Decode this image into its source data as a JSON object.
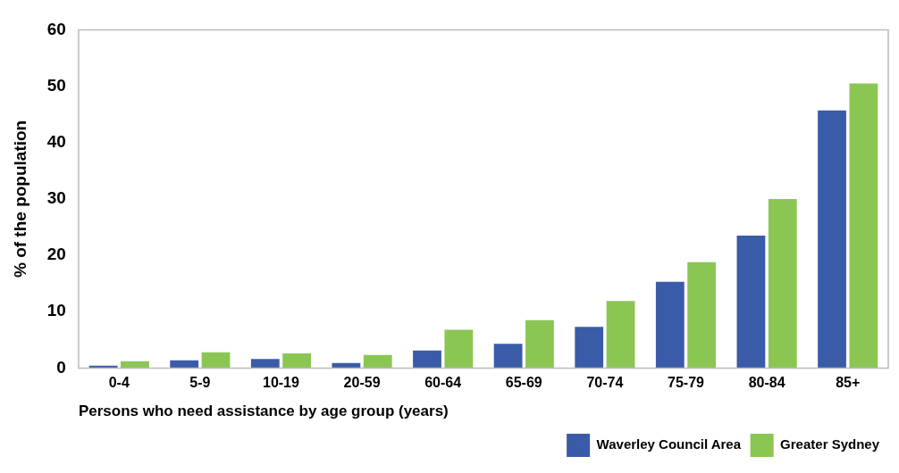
{
  "chart_data": {
    "type": "bar",
    "xlabel": "Persons who need assistance by age group (years)",
    "ylabel": "% of the population",
    "categories": [
      "0-4",
      "5-9",
      "10-19",
      "20-59",
      "60-64",
      "65-69",
      "70-74",
      "75-79",
      "80-84",
      "85+"
    ],
    "series": [
      {
        "name": "Waverley Council Area",
        "color": "#3a5ba8",
        "values": [
          0.4,
          1.35,
          1.6,
          0.9,
          3.1,
          4.3,
          7.3,
          15.3,
          23.5,
          45.7
        ]
      },
      {
        "name": "Greater Sydney",
        "color": "#8bc653",
        "values": [
          1.2,
          2.8,
          2.6,
          2.3,
          6.8,
          8.5,
          11.9,
          18.8,
          30,
          50.5
        ]
      }
    ],
    "ylim": [
      0,
      60
    ],
    "yticks": [
      0,
      10,
      20,
      30,
      40,
      50,
      60
    ],
    "grid": false,
    "legend": "bottom right"
  }
}
